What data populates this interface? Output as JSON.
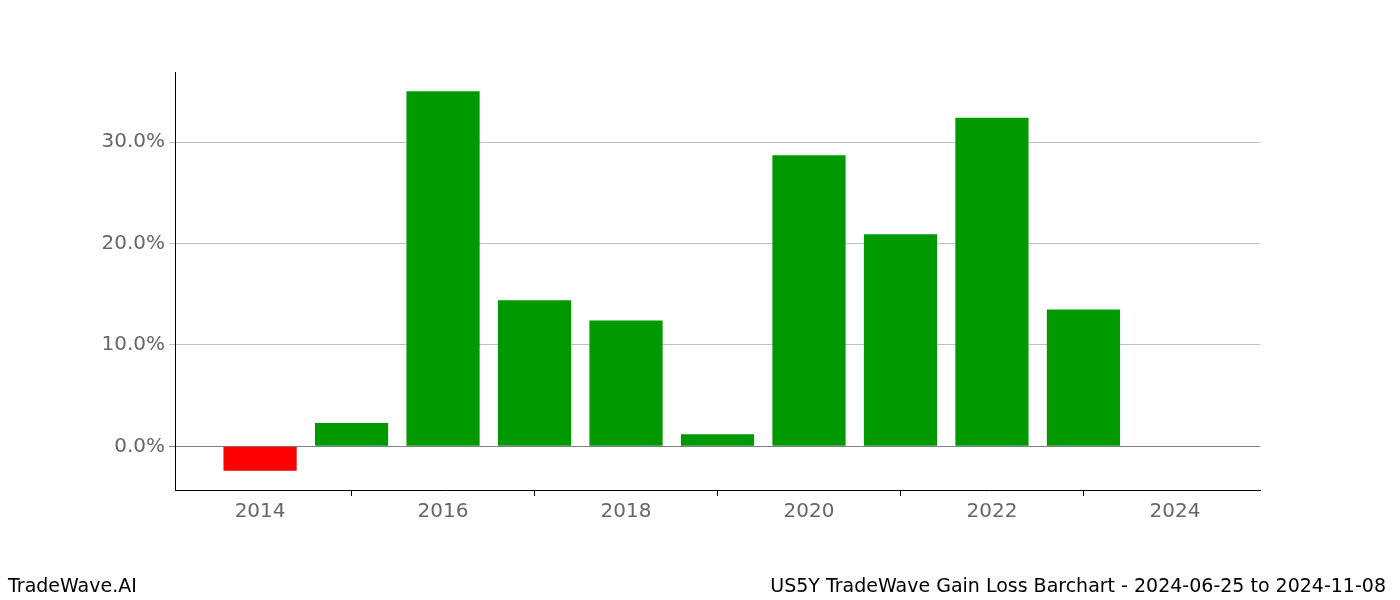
{
  "chart_data": {
    "type": "bar",
    "title": "US5Y TradeWave Gain Loss Barchart - 2024-06-25 to 2024-11-08",
    "annotations": [
      "TradeWave.AI"
    ],
    "x": [
      2014,
      2015,
      2016,
      2017,
      2018,
      2019,
      2020,
      2021,
      2022,
      2023
    ],
    "values": [
      -2.4,
      2.3,
      35.0,
      14.4,
      12.4,
      1.2,
      28.7,
      20.9,
      32.4,
      13.5
    ],
    "colors": [
      "#ff0000",
      "#009900",
      "#009900",
      "#009900",
      "#009900",
      "#009900",
      "#009900",
      "#009900",
      "#009900",
      "#009900"
    ],
    "xlim": [
      2013.07,
      2024.93
    ],
    "xticks": [
      2014,
      2016,
      2018,
      2020,
      2022,
      2024
    ],
    "ylim": [
      -4.3,
      36.9
    ],
    "yticks": [
      {
        "value": 0,
        "label": "0.0%"
      },
      {
        "value": 10,
        "label": "10.0%"
      },
      {
        "value": 20,
        "label": "20.0%"
      },
      {
        "value": 30,
        "label": "30.0%"
      }
    ],
    "grid": true
  }
}
